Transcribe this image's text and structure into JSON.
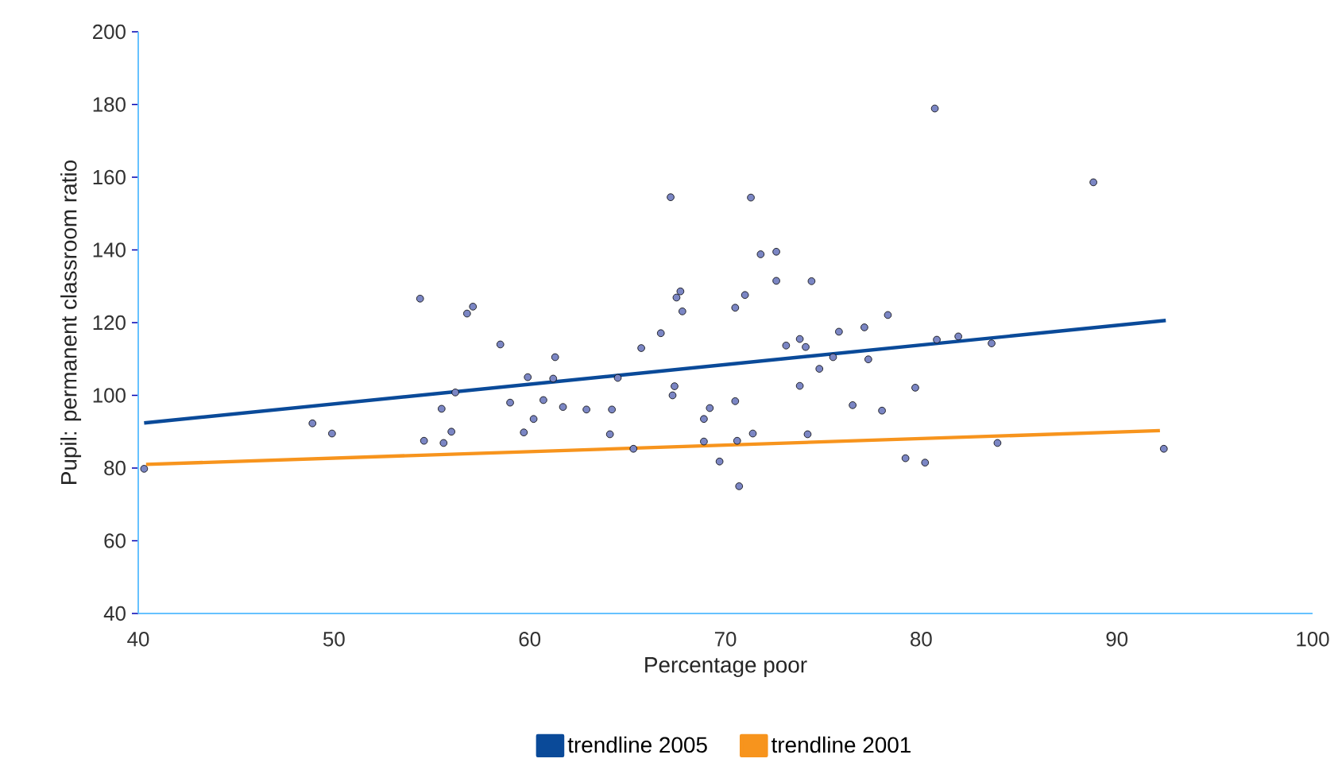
{
  "chart_data": {
    "type": "scatter",
    "xlabel": "Percentage poor",
    "ylabel": "Pupil: permanent classroom ratio",
    "xlim": [
      40,
      100
    ],
    "xticks": [
      40,
      50,
      60,
      70,
      80,
      90,
      100
    ],
    "ylim": [
      40,
      200
    ],
    "yticks": [
      40,
      60,
      80,
      100,
      120,
      140,
      160,
      180,
      200
    ],
    "grid": false,
    "legend": "bottom",
    "series": [
      {
        "marker": "circle",
        "color": "#7b86c4",
        "x": [
          40.3,
          48.9,
          49.9,
          54.4,
          54.6,
          55.5,
          55.6,
          56.0,
          56.2,
          56.8,
          57.1,
          58.5,
          59.0,
          59.7,
          59.9,
          60.2,
          60.7,
          61.2,
          61.3,
          61.7,
          62.9,
          64.2,
          64.1,
          64.5,
          65.3,
          65.7,
          66.7,
          67.2,
          67.5,
          67.7,
          67.8,
          67.4,
          67.3,
          68.9,
          69.2,
          68.9,
          69.7,
          70.5,
          71.0,
          70.5,
          70.6,
          70.7,
          71.3,
          71.4,
          71.8,
          72.6,
          72.6,
          73.1,
          73.8,
          74.1,
          73.8,
          74.2,
          74.4,
          74.8,
          75.5,
          75.8,
          76.5,
          77.1,
          77.3,
          78.0,
          78.3,
          79.2,
          79.7,
          80.2,
          80.8,
          81.9,
          83.6,
          83.9,
          80.7,
          88.8,
          92.4
        ],
        "values": [
          79.8,
          92.3,
          89.5,
          126.6,
          87.5,
          96.3,
          86.9,
          90.0,
          100.8,
          122.5,
          124.4,
          114.0,
          98.0,
          89.8,
          105.0,
          93.5,
          98.7,
          104.6,
          110.5,
          96.8,
          96.1,
          96.1,
          89.3,
          104.8,
          85.3,
          113.0,
          117.1,
          154.5,
          126.9,
          128.6,
          123.1,
          102.5,
          100.0,
          93.5,
          96.5,
          87.3,
          81.8,
          124.1,
          127.6,
          98.4,
          87.5,
          75.0,
          154.4,
          89.5,
          138.8,
          139.5,
          131.5,
          113.7,
          115.5,
          113.3,
          102.6,
          89.3,
          131.4,
          107.3,
          110.5,
          117.5,
          97.3,
          118.7,
          109.9,
          95.8,
          122.1,
          82.7,
          102.1,
          81.5,
          115.3,
          116.2,
          114.3,
          86.9,
          178.9,
          158.6,
          85.3
        ]
      },
      {
        "type": "line",
        "name": "trendline 2005",
        "marker": "none",
        "color": "#0a4a99",
        "x": [
          40.3,
          92.5
        ],
        "values": [
          92.4,
          120.6
        ]
      },
      {
        "type": "line",
        "name": "trendline 2001",
        "marker": "none",
        "color": "#f7941d",
        "x": [
          40.4,
          92.2
        ],
        "values": [
          81.0,
          90.3
        ]
      }
    ]
  }
}
